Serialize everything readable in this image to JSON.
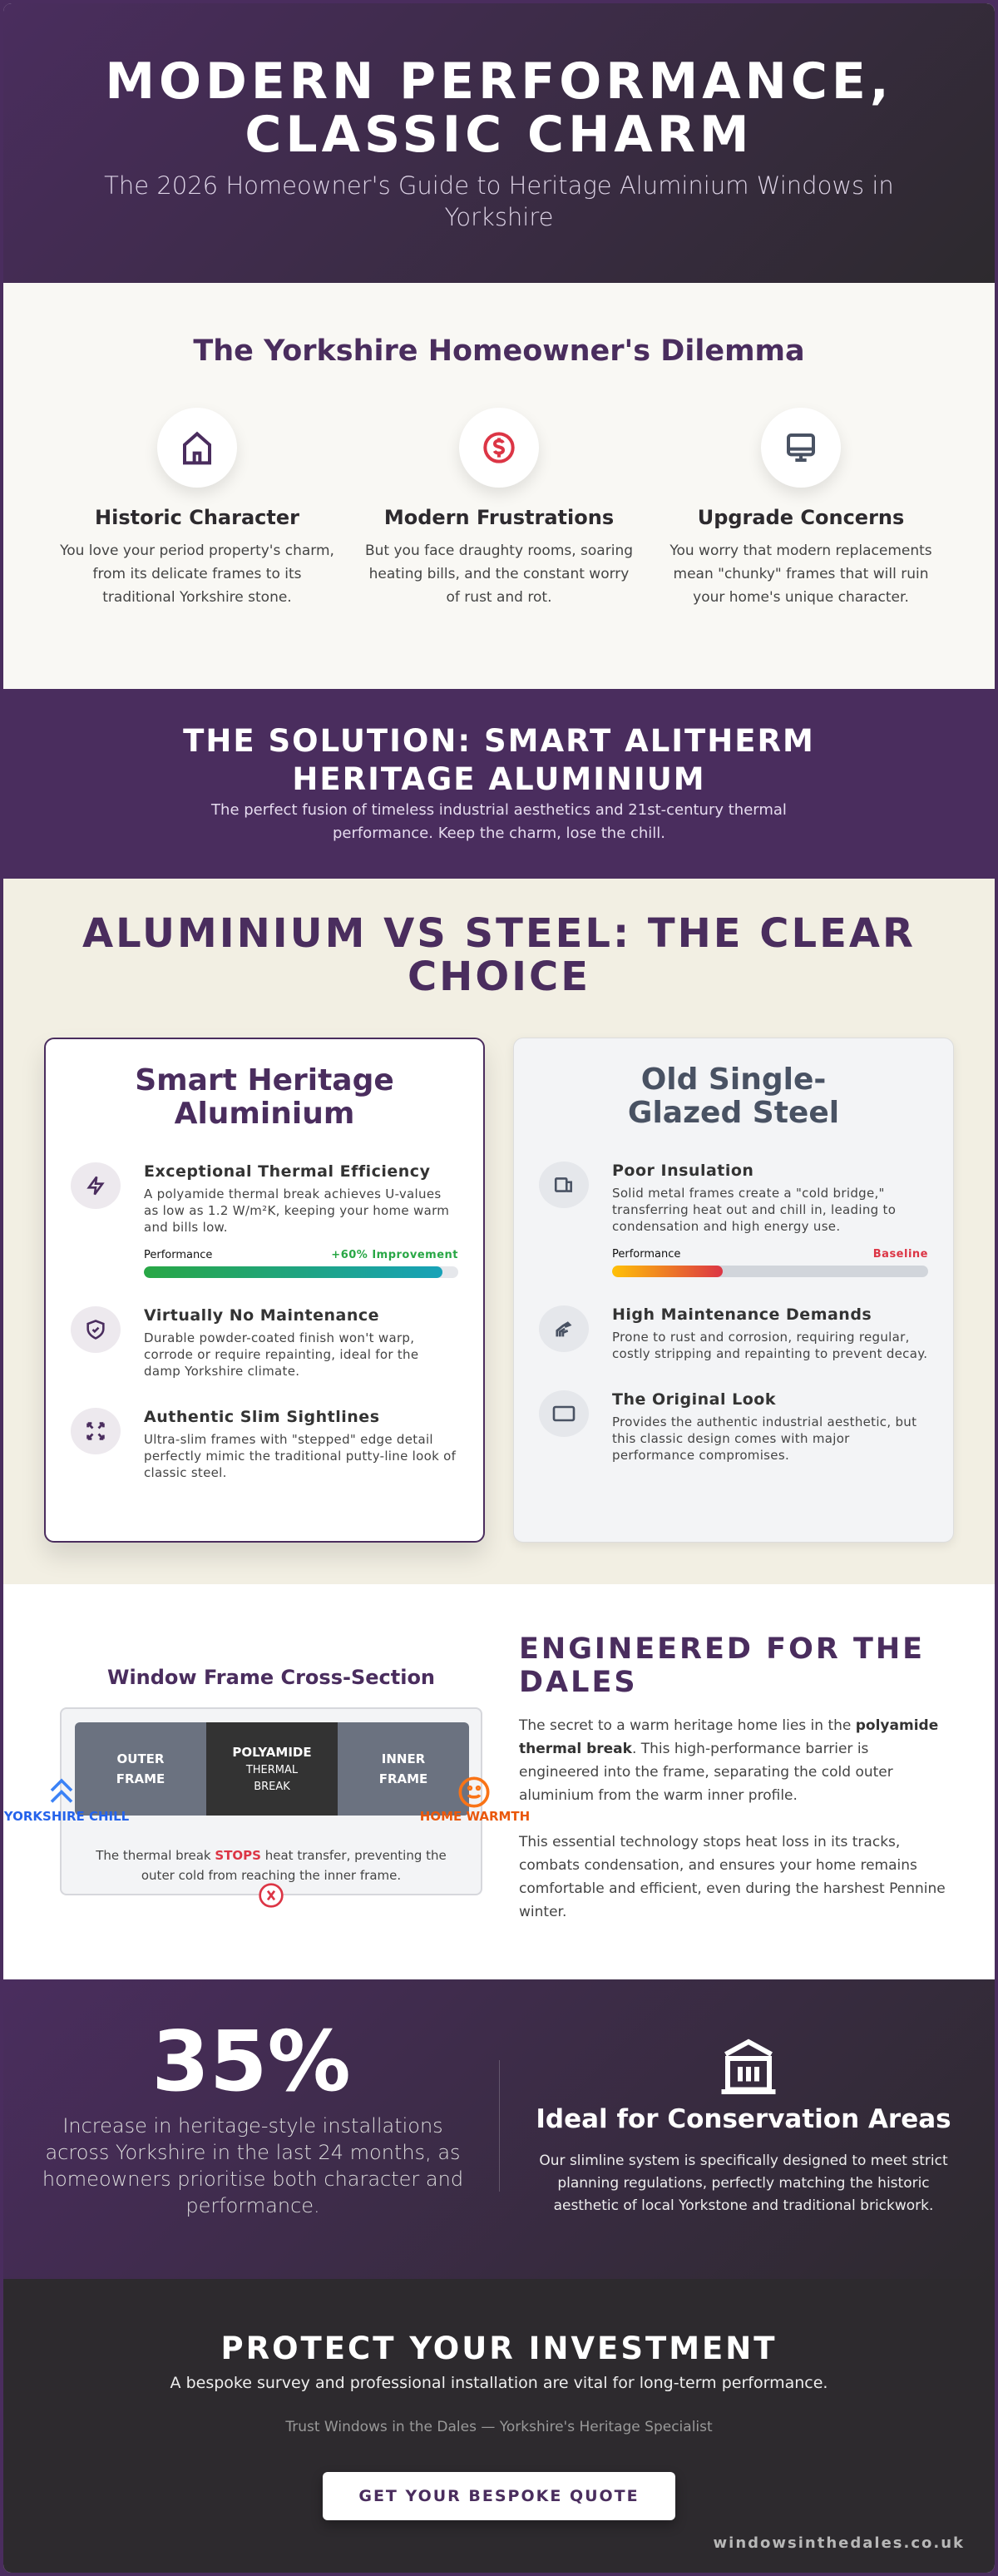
{
  "header": {
    "title": "MODERN PERFORMANCE, CLASSIC CHARM",
    "subtitle": "The 2026 Homeowner's Guide to Heritage Aluminium Windows in Yorkshire"
  },
  "dilemma": {
    "title": "The Yorkshire Homeowner's Dilemma",
    "items": [
      {
        "icon": "house-icon",
        "title": "Historic Character",
        "text": "You love your period property's charm, from its delicate frames to its traditional Yorkshire stone."
      },
      {
        "icon": "dollar-icon",
        "title": "Modern Frustrations",
        "text": "But you face draughty rooms, soaring heating bills, and the constant worry of rust and rot."
      },
      {
        "icon": "monitor-icon",
        "title": "Upgrade Concerns",
        "text": "You worry that modern replacements mean \"chunky\" frames that will ruin your home's unique character."
      }
    ]
  },
  "solution": {
    "title": "THE SOLUTION: SMART ALITHERM HERITAGE ALUMINIUM",
    "text": "The perfect fusion of timeless industrial aesthetics and 21st-century thermal performance. Keep the charm, lose the chill."
  },
  "comparison": {
    "title": "ALUMINIUM VS STEEL: THE CLEAR CHOICE",
    "aluminium": {
      "title": "Smart Heritage Aluminium",
      "features": [
        {
          "icon": "lightning-icon",
          "title": "Exceptional Thermal Efficiency",
          "text": "A polyamide thermal break achieves U-values as low as 1.2 W/m²K, keeping your home warm and bills low."
        },
        {
          "icon": "shield-check-icon",
          "title": "Virtually No Maintenance",
          "text": "Durable powder-coated finish won't warp, corrode or require repainting, ideal for the damp Yorkshire climate."
        },
        {
          "icon": "expand-arrows-icon",
          "title": "Authentic Slim Sightlines",
          "text": "Ultra-slim frames with \"stepped\" edge detail perfectly mimic the traditional putty-line look of classic steel."
        }
      ],
      "performance": {
        "label": "Performance",
        "value_label": "+60% Improvement",
        "fill_percent": 95,
        "color": "#28a745"
      }
    },
    "steel": {
      "title": "Old Single-Glazed Steel",
      "features": [
        {
          "icon": "cold-bridge-icon",
          "title": "Poor Insulation",
          "text": "Solid metal frames create a \"cold bridge,\" transferring heat out and chill in, leading to condensation and high energy use."
        },
        {
          "icon": "scraper-icon",
          "title": "High Maintenance Demands",
          "text": "Prone to rust and corrosion, requiring regular, costly stripping and repainting to prevent decay."
        },
        {
          "icon": "rectangle-icon",
          "title": "The Original Look",
          "text": "Provides the authentic industrial aesthetic, but this classic design comes with major performance compromises."
        }
      ],
      "performance": {
        "label": "Performance",
        "value_label": "Baseline",
        "fill_percent": 35,
        "color": "#dc3545"
      }
    }
  },
  "engineered": {
    "diagram_title": "Window Frame Cross-Section",
    "segments": [
      {
        "title": "OUTER",
        "title2": "FRAME"
      },
      {
        "title": "POLYAMIDE",
        "sub1": "THERMAL",
        "sub2": "BREAK"
      },
      {
        "title": "INNER",
        "title2": "FRAME"
      }
    ],
    "chill_label": "YORKSHIRE CHILL",
    "warmth_label": "HOME WARMTH",
    "caption_pre": "The thermal break ",
    "caption_stop": "STOPS",
    "caption_post": " heat transfer, preventing the outer cold from reaching the inner frame.",
    "title": "ENGINEERED FOR THE DALES",
    "p1_pre": "The secret to a warm heritage home lies in the ",
    "p1_bold": "polyamide thermal break",
    "p1_post": ". This high-performance barrier is engineered into the frame, separating the cold outer aluminium from the warm inner profile.",
    "p2": "This essential technology stops heat loss in its tracks, combats condensation, and ensures your home remains comfortable and efficient, even during the harshest Pennine winter."
  },
  "stats": {
    "value": "35%",
    "text": "Increase in heritage-style installations across Yorkshire in the last 24 months, as homeowners prioritise both character and performance.",
    "conservation_title": "Ideal for Conservation Areas",
    "conservation_text": "Our slimline system is specifically designed to meet strict planning regulations, perfectly matching the historic aesthetic of local Yorkstone and traditional brickwork."
  },
  "cta": {
    "title": "PROTECT YOUR INVESTMENT",
    "subtitle": "A bespoke survey and professional installation are vital for long-term performance.",
    "trust": "Trust Windows in the Dales — Yorkshire's Heritage Specialist",
    "button": "GET YOUR BESPOKE QUOTE",
    "url": "windowsinthedales.co.uk"
  },
  "colors": {
    "brand": "#4a2d5e",
    "dark": "#2d2a2e",
    "cream": "#f2efe3",
    "chill": "#3b82f6",
    "warmth": "#f97316",
    "stop": "#dc3545"
  }
}
